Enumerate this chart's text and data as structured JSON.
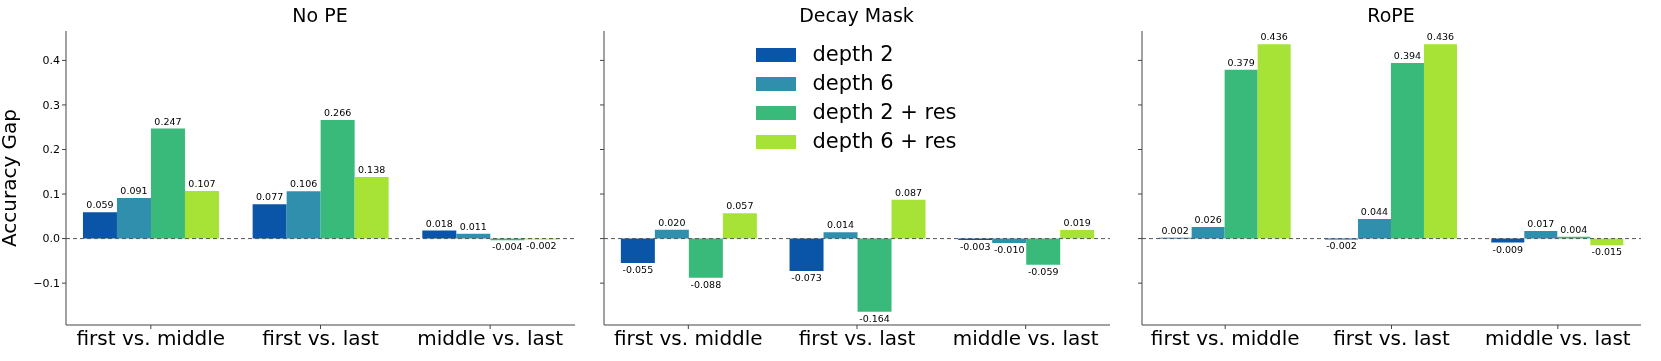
{
  "chart_data": [
    {
      "type": "bar",
      "title": "No PE",
      "ylabel": "Accuracy Gap",
      "categories": [
        "first vs. middle",
        "first vs. last",
        "middle vs. last"
      ],
      "ylim": [
        -0.194,
        0.466
      ],
      "yticks": [
        {
          "value": -0.1,
          "label": "−0.1"
        },
        {
          "value": 0,
          "label": "0.0"
        },
        0.1,
        0.2,
        0.3,
        0.4
      ],
      "legend": false,
      "ref_lines": [
        {
          "axis": "y",
          "value": 0,
          "color": "#555555",
          "line_style": "dashed"
        }
      ],
      "series": [
        {
          "color": "#0a55a8",
          "values": [
            0.059,
            0.077,
            0.018
          ],
          "value_labels": [
            "0.059",
            "0.077",
            "0.018"
          ]
        },
        {
          "color": "#318fae",
          "values": [
            0.091,
            0.106,
            0.011
          ],
          "value_labels": [
            "0.091",
            "0.106",
            "0.011"
          ]
        },
        {
          "color": "#3aba7a",
          "values": [
            0.247,
            0.266,
            -0.004
          ],
          "value_labels": [
            "0.247",
            "0.266",
            "-0.004"
          ]
        },
        {
          "color": "#a6e336",
          "values": [
            0.107,
            0.138,
            -0.002
          ],
          "value_labels": [
            "0.107",
            "0.138",
            "-0.002"
          ]
        }
      ]
    },
    {
      "type": "bar",
      "title": "Decay Mask",
      "categories": [
        "first vs. middle",
        "first vs. last",
        "middle vs. last"
      ],
      "ylim": [
        -0.194,
        0.466
      ],
      "yticks": [
        -0.1,
        0,
        0.1,
        0.2,
        0.3,
        0.4
      ],
      "tick_labels": "x",
      "legend": "top",
      "ref_lines": [
        {
          "axis": "y",
          "value": 0,
          "color": "#555555",
          "line_style": "dashed"
        }
      ],
      "series": [
        {
          "name": "depth 2",
          "color": "#0a55a8",
          "values": [
            -0.055,
            -0.073,
            -0.003
          ],
          "value_labels": [
            "-0.055",
            "-0.073",
            "-0.003"
          ]
        },
        {
          "name": "depth 6",
          "color": "#318fae",
          "values": [
            0.02,
            0.014,
            -0.01
          ],
          "value_labels": [
            "0.020",
            "0.014",
            "-0.010"
          ]
        },
        {
          "name": "depth 2 + res",
          "color": "#3aba7a",
          "values": [
            -0.088,
            -0.164,
            -0.059
          ],
          "value_labels": [
            "-0.088",
            "-0.164",
            "-0.059"
          ]
        },
        {
          "name": "depth 6 + res",
          "color": "#a6e336",
          "values": [
            0.057,
            0.087,
            0.019
          ],
          "value_labels": [
            "0.057",
            "0.087",
            "0.019"
          ]
        }
      ]
    },
    {
      "type": "bar",
      "title": "RoPE",
      "categories": [
        "first vs. middle",
        "first vs. last",
        "middle vs. last"
      ],
      "ylim": [
        -0.194,
        0.466
      ],
      "yticks": [
        -0.1,
        0,
        0.1,
        0.2,
        0.3,
        0.4
      ],
      "tick_labels": "x",
      "legend": false,
      "ref_lines": [
        {
          "axis": "y",
          "value": 0,
          "color": "#555555",
          "line_style": "dashed"
        }
      ],
      "series": [
        {
          "color": "#0a55a8",
          "values": [
            0.002,
            -0.002,
            -0.009
          ],
          "value_labels": [
            "0.002",
            "-0.002",
            "-0.009"
          ]
        },
        {
          "color": "#318fae",
          "values": [
            0.026,
            0.044,
            0.017
          ],
          "value_labels": [
            "0.026",
            "0.044",
            "0.017"
          ]
        },
        {
          "color": "#3aba7a",
          "values": [
            0.379,
            0.394,
            0.004
          ],
          "value_labels": [
            "0.379",
            "0.394",
            "0.004"
          ]
        },
        {
          "color": "#a6e336",
          "values": [
            0.436,
            0.436,
            -0.015
          ],
          "value_labels": [
            "0.436",
            "0.436",
            "-0.015"
          ]
        }
      ]
    }
  ]
}
